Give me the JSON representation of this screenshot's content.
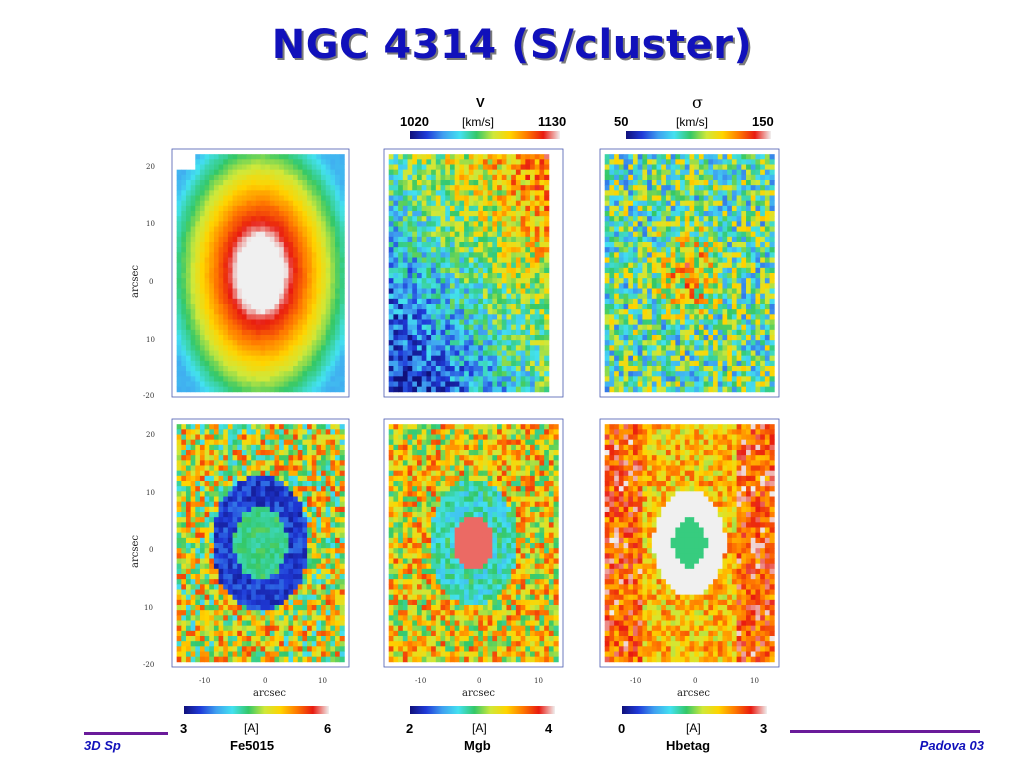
{
  "title": "NGC 4314 (S/cluster)",
  "footer": {
    "left": "3D Sp",
    "right": "Padova 03"
  },
  "axis": {
    "ylabel": "arcsec",
    "xlabel": "arcsec",
    "yticks": [
      "20",
      "10",
      "0",
      "10",
      "-20"
    ],
    "xticks": [
      "-10",
      "0",
      "10"
    ]
  },
  "colorbars_top": [
    {
      "name": "V",
      "unit": "[km/s]",
      "min": "1020",
      "max": "1130"
    },
    {
      "name": "σ",
      "unit": "[km/s]",
      "min": "50",
      "max": "150"
    }
  ],
  "colorbars_bottom": [
    {
      "name": "Fe5015",
      "unit": "[A]",
      "min": "3",
      "max": "6"
    },
    {
      "name": "Mgb",
      "unit": "[A]",
      "min": "2",
      "max": "4"
    },
    {
      "name": "Hbetag",
      "unit": "[A]",
      "min": "0",
      "max": "3"
    }
  ],
  "colors": {
    "title": "#1111bb",
    "footer_line": "#6a1b9a"
  }
}
